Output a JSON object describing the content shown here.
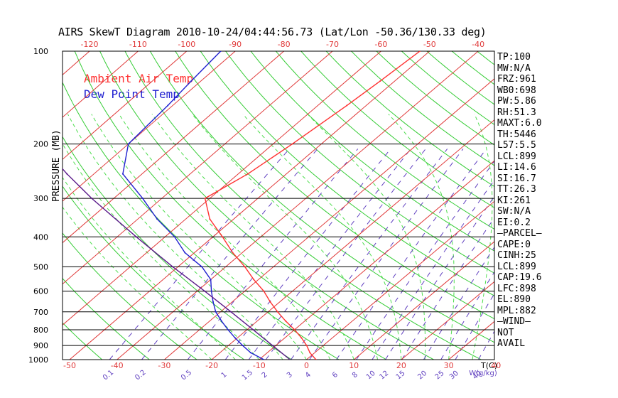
{
  "title": "AIRS SkewT Diagram 2010-10-24/04:44:56.73 (Lat/Lon -50.36/130.33 deg)",
  "legend": {
    "ambient": "Ambient Air Temp",
    "dewpoint": "Dew Point Temp"
  },
  "y_axis_label": "PRESSURE (MB)",
  "colors": {
    "ambient": "#ff3030",
    "dewpoint": "#2020d0",
    "isotherm": "#e03a3a",
    "dry_adiabat": "#35cc35",
    "moist_adiabat": "#4ddd4d",
    "mixing_ratio": "#6040c0",
    "parcel": "#5a1a8a",
    "isobar": "#000000"
  },
  "indices": [
    "TP:100",
    "MW:N/A",
    "FRZ:961",
    "WB0:698",
    "PW:5.86",
    "RH:51.3",
    "MAXT:6.0",
    "TH:5446",
    "L57:5.5",
    "LCL:899",
    "LI:14.6",
    "SI:16.7",
    "TT:26.3",
    "KI:261",
    "SW:N/A",
    "EI:0.2",
    "–PARCEL–",
    "CAPE:0",
    "CINH:25",
    "LCL:899",
    "CAP:19.6",
    "LFC:898",
    "EL:890",
    "MPL:882",
    "–WIND–",
    "NOT",
    "AVAIL"
  ],
  "chart_data": {
    "type": "line",
    "subtype": "skew-T log-p diagram",
    "title": "AIRS SkewT Diagram 2010-10-24/04:44:56.73 (Lat/Lon -50.36/130.33 deg)",
    "ylabel": "PRESSURE (MB)",
    "yscale": "log",
    "ylim": [
      1000,
      100
    ],
    "xlim_bottom": [
      -50,
      40
    ],
    "xlim_top": [
      -120,
      -40
    ],
    "pressure_ticks": [
      100,
      200,
      300,
      400,
      500,
      600,
      700,
      800,
      900,
      1000
    ],
    "temp_ticks_bottom": [
      -50,
      -40,
      -30,
      -20,
      -10,
      0,
      10,
      20,
      30,
      40
    ],
    "temp_ticks_top": [
      -120,
      -110,
      -100,
      -90,
      -80,
      -70,
      -60,
      -50,
      -40
    ],
    "bottom_unit_label": "T(C)",
    "mixing_ratio_labels": [
      "0.1",
      "0.2",
      "0.5",
      "1",
      "1.5",
      "2",
      "3",
      "4",
      "6",
      "8",
      "10",
      "12",
      "15",
      "20",
      "25",
      "30",
      "40"
    ],
    "mixing_ratio_unit": "g/kg",
    "series": [
      {
        "name": "Ambient Air Temp",
        "pressure": [
          1000,
          950,
          900,
          850,
          800,
          750,
          700,
          650,
          600,
          550,
          500,
          450,
          400,
          350,
          300,
          250,
          200,
          150,
          125,
          100
        ],
        "temperature": [
          2,
          -1,
          -3.5,
          -6.5,
          -10,
          -14,
          -18,
          -22,
          -26,
          -31,
          -36,
          -42,
          -48,
          -55,
          -61,
          -58,
          -56,
          -54,
          -53,
          -52
        ]
      },
      {
        "name": "Dew Point Temp",
        "pressure": [
          1000,
          950,
          900,
          850,
          800,
          750,
          700,
          650,
          600,
          550,
          500,
          450,
          400,
          350,
          300,
          250,
          200,
          150,
          125,
          100
        ],
        "temperature": [
          -9,
          -13.5,
          -17,
          -20.5,
          -24,
          -27.5,
          -31,
          -34,
          -37,
          -40,
          -45,
          -52,
          -58,
          -66,
          -74,
          -84,
          -90,
          -91,
          -92,
          -93
        ]
      },
      {
        "name": "parcel",
        "pressure": [
          1000,
          900,
          800,
          700,
          600,
          500,
          400,
          300,
          250,
          200,
          150,
          100
        ],
        "temperature": [
          -3.5,
          -10.7,
          -18.7,
          -27.8,
          -38.4,
          -51.1,
          -66,
          -84.6,
          -95.6,
          -108.2,
          -123.1,
          -141.7
        ]
      }
    ]
  }
}
